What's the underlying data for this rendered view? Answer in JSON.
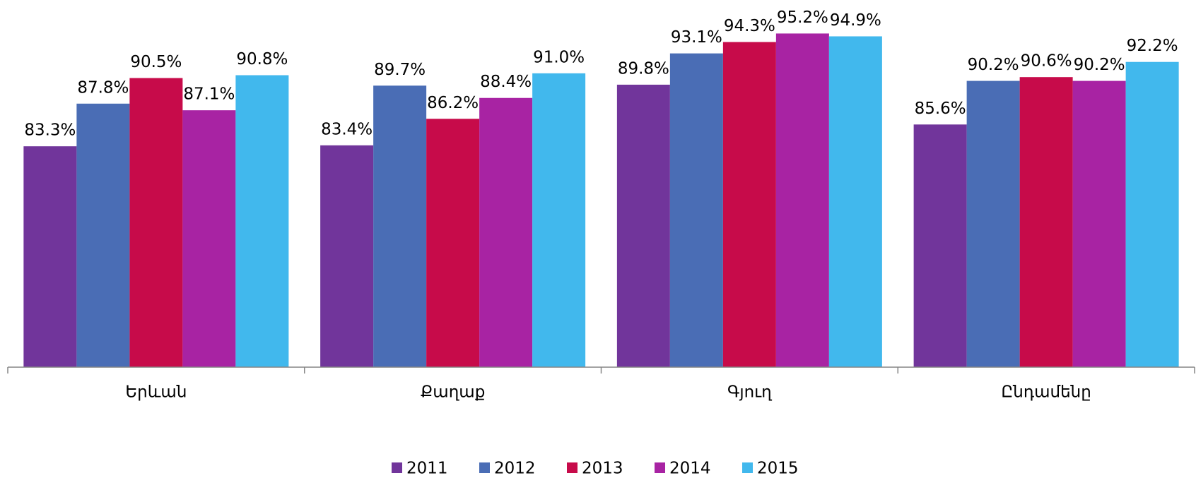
{
  "chart_data": {
    "type": "bar",
    "categories": [
      "Երևան",
      "Քաղաք",
      "Գյուղ",
      "Ընդամենը"
    ],
    "series": [
      {
        "name": "2011",
        "color": "#71359b",
        "values": [
          83.3,
          83.4,
          89.8,
          85.6
        ],
        "value_labels": [
          "83.3%",
          "83.4%",
          "89.8%",
          "85.6%"
        ]
      },
      {
        "name": "2012",
        "color": "#4a6db5",
        "values": [
          87.8,
          89.7,
          93.1,
          90.2
        ],
        "value_labels": [
          "87.8%",
          "89.7%",
          "93.1%",
          "90.2%"
        ]
      },
      {
        "name": "2013",
        "color": "#c70b4a",
        "values": [
          90.5,
          86.2,
          94.3,
          90.6
        ],
        "value_labels": [
          "90.5%",
          "86.2%",
          "94.3%",
          "90.6%"
        ]
      },
      {
        "name": "2014",
        "color": "#a823a3",
        "values": [
          87.1,
          88.4,
          95.2,
          90.2
        ],
        "value_labels": [
          "87.1%",
          "88.4%",
          "95.2%",
          "90.2%"
        ]
      },
      {
        "name": "2015",
        "color": "#41b8ed",
        "values": [
          90.8,
          91.0,
          94.9,
          92.2
        ],
        "value_labels": [
          "90.8%",
          "91.0%",
          "94.9%",
          "92.2%"
        ]
      }
    ],
    "ylim": [
      60,
      100
    ],
    "legend": "bottom"
  }
}
